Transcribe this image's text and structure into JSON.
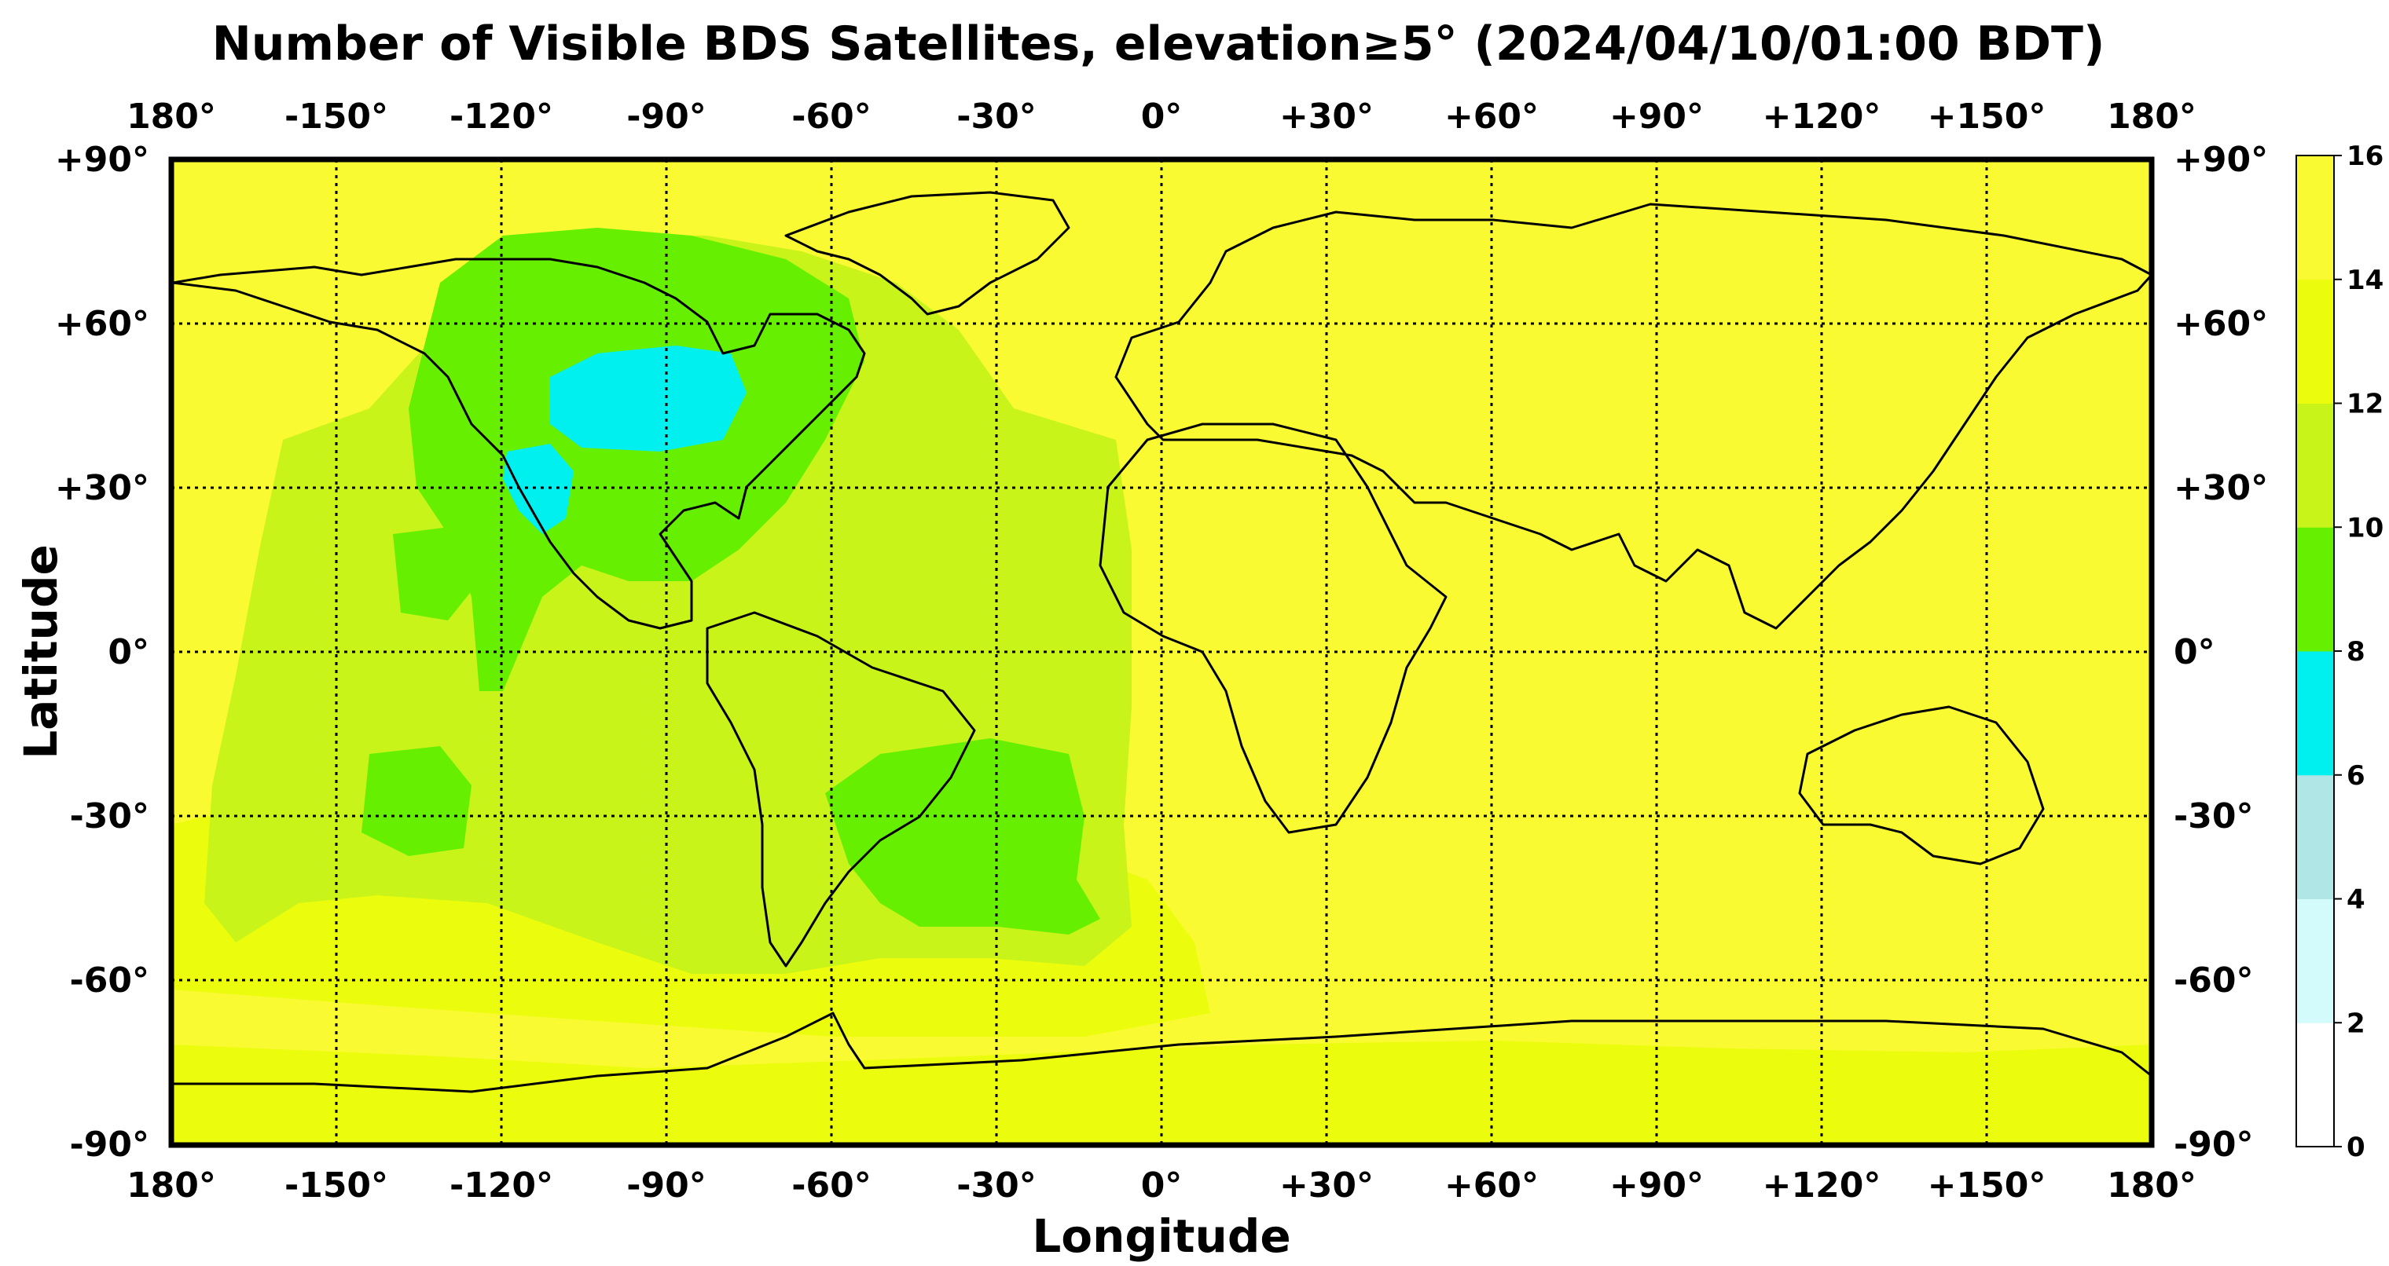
{
  "title": "Number of Visible BDS Satellites, elevation≥5° (2024/04/10/01:00 BDT)",
  "xlabel": "Longitude",
  "ylabel": "Latitude",
  "lon_ticks": [
    "180°",
    "-150°",
    "-120°",
    "-90°",
    "-60°",
    "-30°",
    "0°",
    "+30°",
    "+60°",
    "+90°",
    "+120°",
    "+150°",
    "180°"
  ],
  "lat_ticks": [
    "+90°",
    "+60°",
    "+30°",
    "0°",
    "-30°",
    "-60°",
    "-90°"
  ],
  "colorbar": {
    "labels": [
      "0",
      "2",
      "4",
      "6",
      "8",
      "10",
      "12",
      "14",
      "16"
    ],
    "colors": [
      "#ffffff",
      "#d4fbfb",
      "#b0e6e6",
      "#00f0f0",
      "#66f000",
      "#c8f41a",
      "#ebfd0c",
      "#fafa32"
    ]
  },
  "map_data": {
    "type": "filled-grid",
    "projection": "equirectangular",
    "lon_range": [
      -180,
      180
    ],
    "lat_range": [
      -90,
      90
    ],
    "background_level": "14-16",
    "notes_regions": [
      {
        "lon": [
          -110,
          -85
        ],
        "lat": [
          35,
          50
        ],
        "level": "6-8"
      },
      {
        "lon": [
          -120,
          -108
        ],
        "lat": [
          25,
          35
        ],
        "level": "6-8"
      },
      {
        "lon": [
          -125,
          -75
        ],
        "lat": [
          15,
          65
        ],
        "level": "8-10"
      },
      {
        "lon": [
          -60,
          -20
        ],
        "lat": [
          -50,
          -15
        ],
        "level": "8-10"
      },
      {
        "lon": [
          -160,
          -20
        ],
        "lat": [
          -55,
          50
        ],
        "level": "10-12"
      },
      {
        "lon": [
          -180,
          180
        ],
        "lat": [
          -90,
          -70
        ],
        "level": "12-14"
      }
    ]
  }
}
